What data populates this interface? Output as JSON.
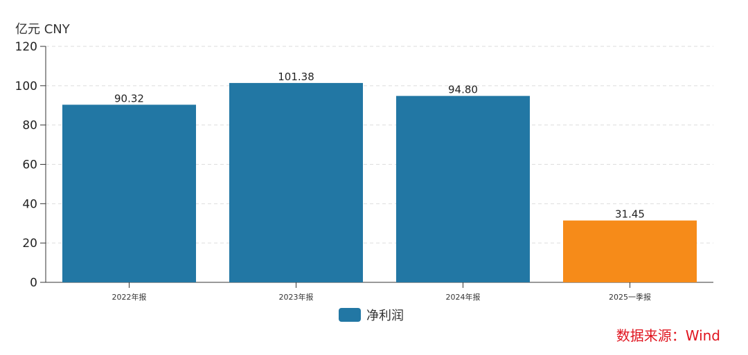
{
  "chart_data": {
    "type": "bar",
    "unit_label": "亿元  CNY",
    "categories": [
      "2022年报",
      "2023年报",
      "2024年报",
      "2025一季报"
    ],
    "series": [
      {
        "name": "净利润",
        "values": [
          90.32,
          101.38,
          94.8,
          31.45
        ]
      }
    ],
    "value_labels": [
      "90.32",
      "101.38",
      "94.80",
      "31.45"
    ],
    "bar_colors": [
      "#2277a4",
      "#2277a4",
      "#2277a4",
      "#f68b19"
    ],
    "ylim": [
      0,
      120
    ],
    "yticks": [
      0,
      20,
      40,
      60,
      80,
      100,
      120
    ],
    "grid": "horizontal dashed",
    "legend": "bottom-center"
  },
  "legend": {
    "label": "净利润",
    "color": "#2277a4"
  },
  "source": "数据来源：Wind"
}
